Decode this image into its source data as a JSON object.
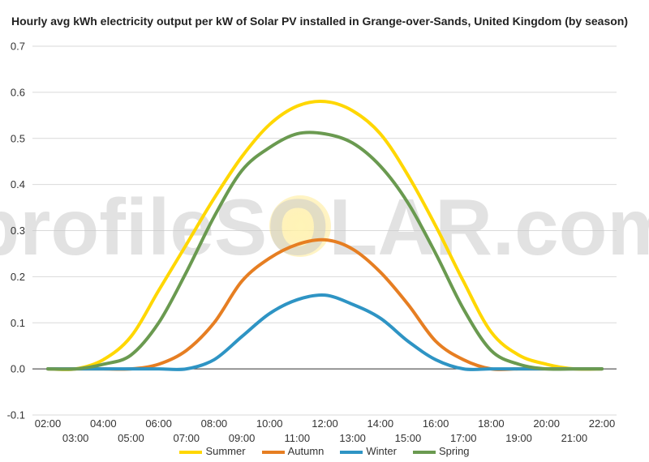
{
  "watermark": {
    "text": "profileSOLAR.com"
  },
  "chart_data": {
    "type": "line",
    "title": "Hourly avg kWh electricity output per kW of Solar PV installed in Grange-over-Sands, United Kingdom (by season)",
    "xlabel": "",
    "ylabel": "",
    "ylim": [
      -0.1,
      0.7
    ],
    "y_ticks": [
      "-0.1",
      "0.0",
      "0.1",
      "0.2",
      "0.3",
      "0.4",
      "0.5",
      "0.6",
      "0.7"
    ],
    "grid": true,
    "legend_position": "bottom",
    "categories": [
      "02:00",
      "03:00",
      "04:00",
      "05:00",
      "06:00",
      "07:00",
      "08:00",
      "09:00",
      "10:00",
      "11:00",
      "12:00",
      "13:00",
      "14:00",
      "15:00",
      "16:00",
      "17:00",
      "18:00",
      "19:00",
      "20:00",
      "21:00",
      "22:00"
    ],
    "series": [
      {
        "name": "Summer",
        "color": "#ffd700",
        "values": [
          0.0,
          0.0,
          0.02,
          0.07,
          0.17,
          0.27,
          0.37,
          0.46,
          0.53,
          0.57,
          0.58,
          0.56,
          0.51,
          0.42,
          0.31,
          0.19,
          0.08,
          0.03,
          0.01,
          0.0,
          0.0
        ]
      },
      {
        "name": "Autumn",
        "color": "#e67e22",
        "values": [
          0.0,
          0.0,
          0.0,
          0.0,
          0.01,
          0.04,
          0.1,
          0.19,
          0.24,
          0.27,
          0.28,
          0.26,
          0.21,
          0.14,
          0.06,
          0.02,
          0.0,
          0.0,
          0.0,
          0.0,
          0.0
        ]
      },
      {
        "name": "Winter",
        "color": "#2e94c4",
        "values": [
          0.0,
          0.0,
          0.0,
          0.0,
          0.0,
          0.0,
          0.02,
          0.07,
          0.12,
          0.15,
          0.16,
          0.14,
          0.11,
          0.06,
          0.02,
          0.0,
          0.0,
          0.0,
          0.0,
          0.0,
          0.0
        ]
      },
      {
        "name": "Spring",
        "color": "#6a9a50",
        "values": [
          0.0,
          0.0,
          0.01,
          0.03,
          0.1,
          0.21,
          0.33,
          0.43,
          0.48,
          0.51,
          0.51,
          0.49,
          0.44,
          0.36,
          0.25,
          0.13,
          0.04,
          0.01,
          0.0,
          0.0,
          0.0
        ]
      }
    ]
  }
}
